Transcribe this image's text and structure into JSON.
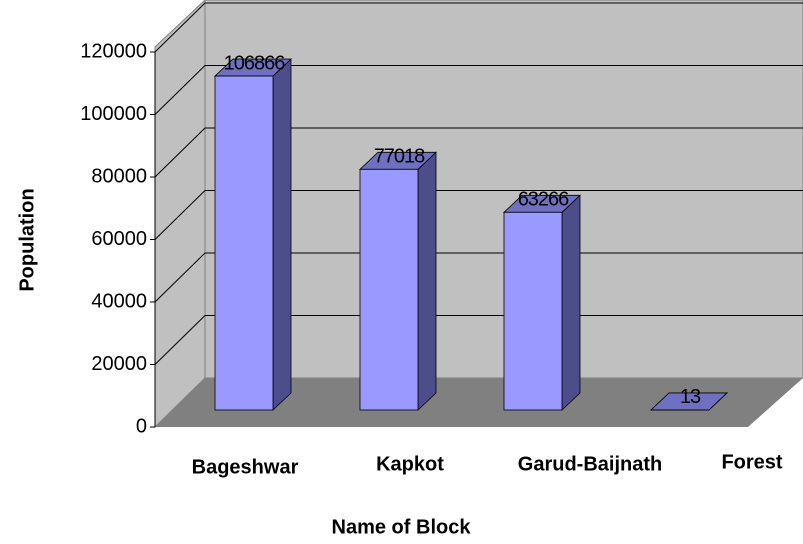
{
  "chart_data": {
    "type": "bar3d",
    "categories": [
      "Bageshwar",
      "Kapkot",
      "Garud-Baijnath",
      "Forest"
    ],
    "values": [
      106866,
      77018,
      63266,
      13
    ],
    "color": "#9999ff",
    "x_label": "Name of Block",
    "y_label": "Population",
    "ylim": [
      0,
      120000
    ],
    "yticks": [
      0,
      20000,
      40000,
      60000,
      80000,
      100000,
      120000
    ],
    "grid": true
  }
}
